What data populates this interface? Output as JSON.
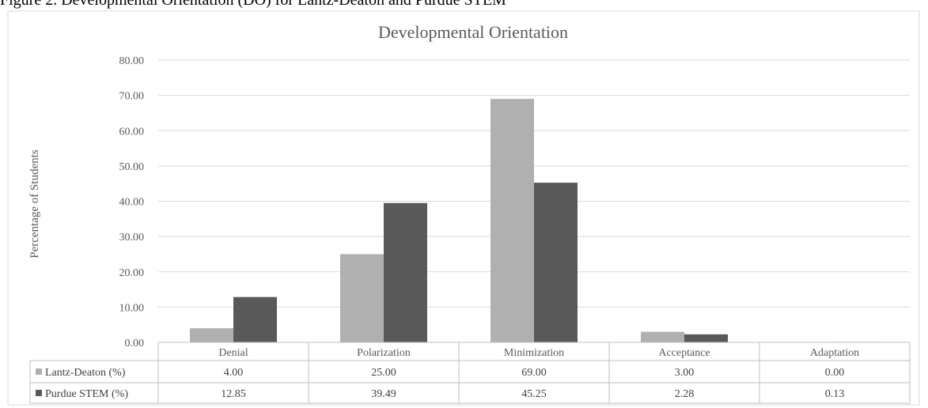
{
  "page": {
    "top_caption": "Figure 2. Developmental Orientation (DO) for Lantz-Deaton and Purdue STEM"
  },
  "chart_data": {
    "type": "bar",
    "title": "Developmental Orientation",
    "ylabel": "Percentage of Students",
    "xlabel": "",
    "ylim": [
      0,
      80
    ],
    "yticks": [
      "0.00",
      "10.00",
      "20.00",
      "30.00",
      "40.00",
      "50.00",
      "60.00",
      "70.00",
      "80.00"
    ],
    "grid": true,
    "legend": "data-table",
    "categories": [
      "Denial",
      "Polarization",
      "Minimization",
      "Acceptance",
      "Adaptation"
    ],
    "series": [
      {
        "name": "Lantz-Deaton (%)",
        "color": "#b0b0b0",
        "values": [
          4.0,
          25.0,
          69.0,
          3.0,
          0.0
        ],
        "labels": [
          "4.00",
          "25.00",
          "69.00",
          "3.00",
          "0.00"
        ]
      },
      {
        "name": "Purdue STEM (%)",
        "color": "#595959",
        "values": [
          12.85,
          39.49,
          45.25,
          2.28,
          0.13
        ],
        "labels": [
          "12.85",
          "39.49",
          "45.25",
          "2.28",
          "0.13"
        ]
      }
    ]
  }
}
